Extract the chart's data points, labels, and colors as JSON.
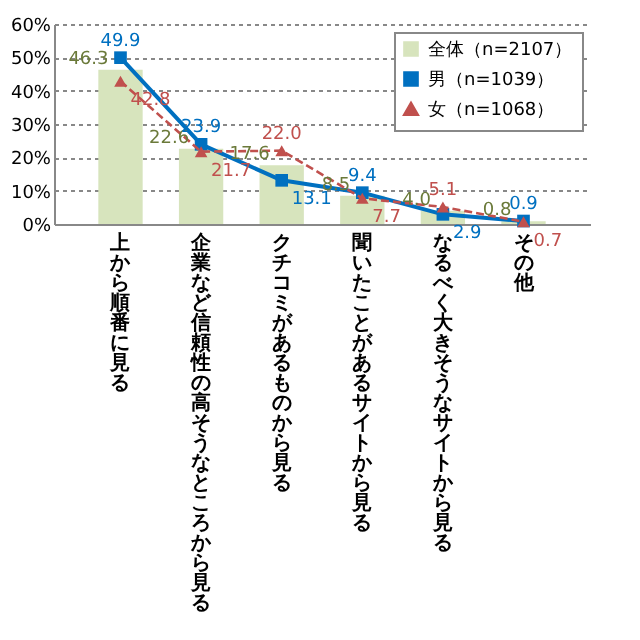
{
  "chart_data": {
    "type": "bar",
    "categories": [
      "上から順番に見る",
      "企業など信頼性の高そうなところから見る",
      "クチコミがあるものから見る",
      "聞いたことがあるサイトから見る",
      "なるべく大きそうなサイトから見る",
      "その他"
    ],
    "series": [
      {
        "name": "全体（n=2107）",
        "color": "#d7e4bd",
        "values": [
          46.3,
          22.6,
          17.6,
          8.5,
          4.0,
          0.8
        ],
        "value_labels": [
          "46.3",
          "22.6",
          "17.6",
          "8.5",
          "4.0",
          "0.8"
        ]
      },
      {
        "name": "男（n=1039）",
        "type": "line",
        "color": "#0070c0",
        "marker": "square",
        "line_style": "solid",
        "values": [
          49.9,
          23.9,
          13.1,
          9.4,
          2.9,
          0.9
        ],
        "value_labels": [
          "49.9",
          "23.9",
          "13.1",
          "9.4",
          "2.9",
          "0.9"
        ]
      },
      {
        "name": "女（n=1068）",
        "type": "line",
        "color": "#c0504d",
        "marker": "triangle",
        "line_style": "dashed",
        "values": [
          42.8,
          21.7,
          22.0,
          7.7,
          5.1,
          0.7
        ],
        "value_labels": [
          "42.8",
          "21.7",
          "22.0",
          "7.7",
          "5.1",
          "0.7"
        ]
      }
    ],
    "ylim": [
      0,
      60
    ],
    "yticks": [
      {
        "value": 0,
        "label": "0%"
      },
      {
        "value": 10,
        "label": "10%"
      },
      {
        "value": 20,
        "label": "20%"
      },
      {
        "value": 30,
        "label": "30%"
      },
      {
        "value": 40,
        "label": "40%"
      },
      {
        "value": 50,
        "label": "50%"
      },
      {
        "value": 60,
        "label": "60%"
      }
    ],
    "grid": "y",
    "legend": "top right"
  }
}
